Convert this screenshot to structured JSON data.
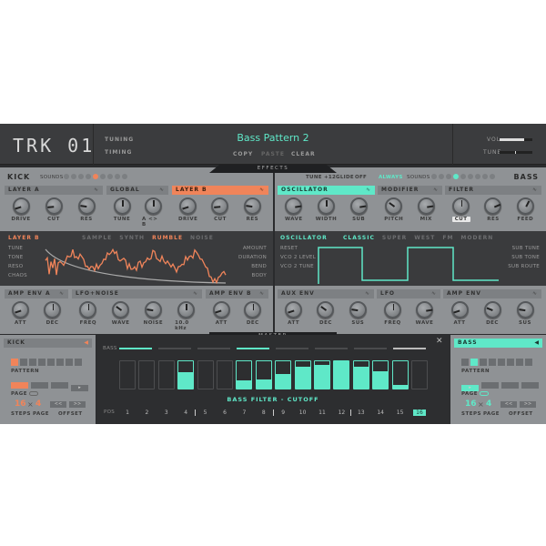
{
  "header": {
    "logo": "TRK 01",
    "tuning": "TUNING",
    "timing": "TIMING",
    "title": "Bass Pattern 2",
    "copy": "COPY",
    "paste": "PASTE",
    "clear": "CLEAR",
    "vol_label": "VOL",
    "tune_label": "TUNE",
    "vol_value": 0.75,
    "tune_value": 0.5
  },
  "effects_tab": "EFFECTS",
  "master_tab": "MASTER",
  "colors": {
    "kick_accent": "#f0845a",
    "bass_accent": "#5fe8c8",
    "panel": "#8f9295",
    "display": "#3a3b3d"
  },
  "kick": {
    "title": "KICK",
    "sounds_label": "SOUNDS",
    "sounds_count": 9,
    "sounds_active": 5,
    "sections": [
      {
        "title": "LAYER A",
        "style": "plain",
        "knobs": [
          {
            "label": "DRIVE",
            "value": 0.1
          },
          {
            "label": "CUT",
            "value": 0.15
          },
          {
            "label": "RES",
            "value": 0.2
          }
        ]
      },
      {
        "title": "GLOBAL",
        "style": "plain",
        "knobs": [
          {
            "label": "TUNE",
            "value": 0.5
          },
          {
            "label": "A <> B",
            "value": 0.5
          }
        ]
      },
      {
        "title": "LAYER B",
        "style": "orange",
        "knobs": [
          {
            "label": "DRIVE",
            "value": 0.1
          },
          {
            "label": "CUT",
            "value": 0.15
          },
          {
            "label": "RES",
            "value": 0.2
          }
        ]
      }
    ],
    "display": {
      "title": "LAYER B",
      "tabs": [
        "SAMPLE",
        "SYNTH",
        "RUMBLE",
        "NOISE"
      ],
      "active_tab": "RUMBLE",
      "left_params": [
        "TUNE",
        "TONE",
        "RESO",
        "CHAOS"
      ],
      "right_params": [
        "AMOUNT",
        "DURATION",
        "BEND",
        "BODY"
      ]
    },
    "env_sections": [
      {
        "title": "AMP ENV A",
        "knobs": [
          {
            "label": "ATT",
            "value": 0.1
          },
          {
            "label": "DEC",
            "value": 0.5
          }
        ]
      },
      {
        "title": "LFO+NOISE",
        "knobs": [
          {
            "label": "FREQ",
            "value": 0.5
          },
          {
            "label": "WAVE",
            "value": 0.3
          },
          {
            "label": "NOISE",
            "value": 0.2
          },
          {
            "label": "10.0 kHz",
            "value": 0.5
          }
        ]
      },
      {
        "title": "AMP ENV B",
        "knobs": [
          {
            "label": "ATT",
            "value": 0.1
          },
          {
            "label": "DEC",
            "value": 0.5
          }
        ]
      }
    ],
    "side": {
      "title": "KICK",
      "pattern_label": "PATTERN",
      "pattern_active": 1,
      "page_label": "PAGE",
      "steps_value": "16",
      "page_value": "4",
      "times": "×",
      "steps_label": "STEPS",
      "page_label2": "PAGE",
      "offset_label": "OFFSET",
      "offset_left": "<<",
      "offset_right": ">>"
    }
  },
  "bass": {
    "title": "BASS",
    "tune": "TUNE +12",
    "glide": "GLIDE",
    "glide_value": "OFF",
    "always": "ALWAYS",
    "sounds_label": "SOUNDS",
    "sounds_count": 9,
    "sounds_active": 4,
    "sections": [
      {
        "title": "OSCILLATOR",
        "style": "teal",
        "knobs": [
          {
            "label": "WAVE",
            "value": 0.8
          },
          {
            "label": "WIDTH",
            "value": 0.5
          },
          {
            "label": "SUB",
            "value": 0.8
          }
        ]
      },
      {
        "title": "MODIFIER",
        "style": "plain",
        "knobs": [
          {
            "label": "PITCH",
            "value": 0.3
          },
          {
            "label": "MIX",
            "value": 0.8
          }
        ]
      },
      {
        "title": "FILTER",
        "style": "plain",
        "knobs": [
          {
            "label": "CUT",
            "value": 0.5,
            "selected": true
          },
          {
            "label": "RES",
            "value": 0.75
          },
          {
            "label": "FEED",
            "value": 0.6
          }
        ]
      }
    ],
    "display": {
      "title": "OSCILLATOR",
      "tabs": [
        "CLASSIC",
        "SUPER",
        "WEST",
        "FM",
        "MODERN"
      ],
      "active_tab": "CLASSIC",
      "left_params": [
        "RESET",
        "VCO 2 LEVEL",
        "VCO 2 TUNE"
      ],
      "right_params": [
        "SUB TUNE",
        "SUB TONE",
        "SUB ROUTE"
      ]
    },
    "env_sections": [
      {
        "title": "AUX ENV",
        "knobs": [
          {
            "label": "ATT",
            "value": 0.1
          },
          {
            "label": "DEC",
            "value": 0.3
          },
          {
            "label": "SUS",
            "value": 0.2
          }
        ]
      },
      {
        "title": "LFO",
        "knobs": [
          {
            "label": "FREQ",
            "value": 0.5
          },
          {
            "label": "WAVE",
            "value": 0.8
          }
        ]
      },
      {
        "title": "AMP ENV",
        "knobs": [
          {
            "label": "ATT",
            "value": 0.1
          },
          {
            "label": "DEC",
            "value": 0.25
          },
          {
            "label": "SUS",
            "value": 0.2
          }
        ]
      }
    ],
    "side": {
      "title": "BASS",
      "pattern_label": "PATTERN",
      "pattern_active": 2,
      "page_label": "PAGE",
      "steps_value": "16",
      "page_value": "4",
      "times": "×",
      "steps_label": "STEPS",
      "page_label2": "PAGE",
      "offset_label": "OFFSET",
      "offset_left": "<<",
      "offset_right": ">>"
    }
  },
  "sequencer": {
    "lane_label": "BASS",
    "param_title": "BASS FILTER - CUTOFF",
    "pos_label": "POS",
    "positions": [
      "1",
      "2",
      "3",
      "4",
      "5",
      "6",
      "7",
      "8",
      "9",
      "10",
      "11",
      "12",
      "13",
      "14",
      "15",
      "16"
    ],
    "current_position": 16,
    "step_values": [
      0,
      0,
      0,
      0.6,
      0,
      0,
      0.3,
      0.35,
      0.55,
      0.8,
      0.88,
      1.0,
      0.8,
      0.65,
      0.12,
      0
    ],
    "step_enabled": [
      false,
      false,
      false,
      true,
      false,
      false,
      true,
      true,
      true,
      true,
      true,
      true,
      true,
      true,
      true,
      false
    ]
  }
}
